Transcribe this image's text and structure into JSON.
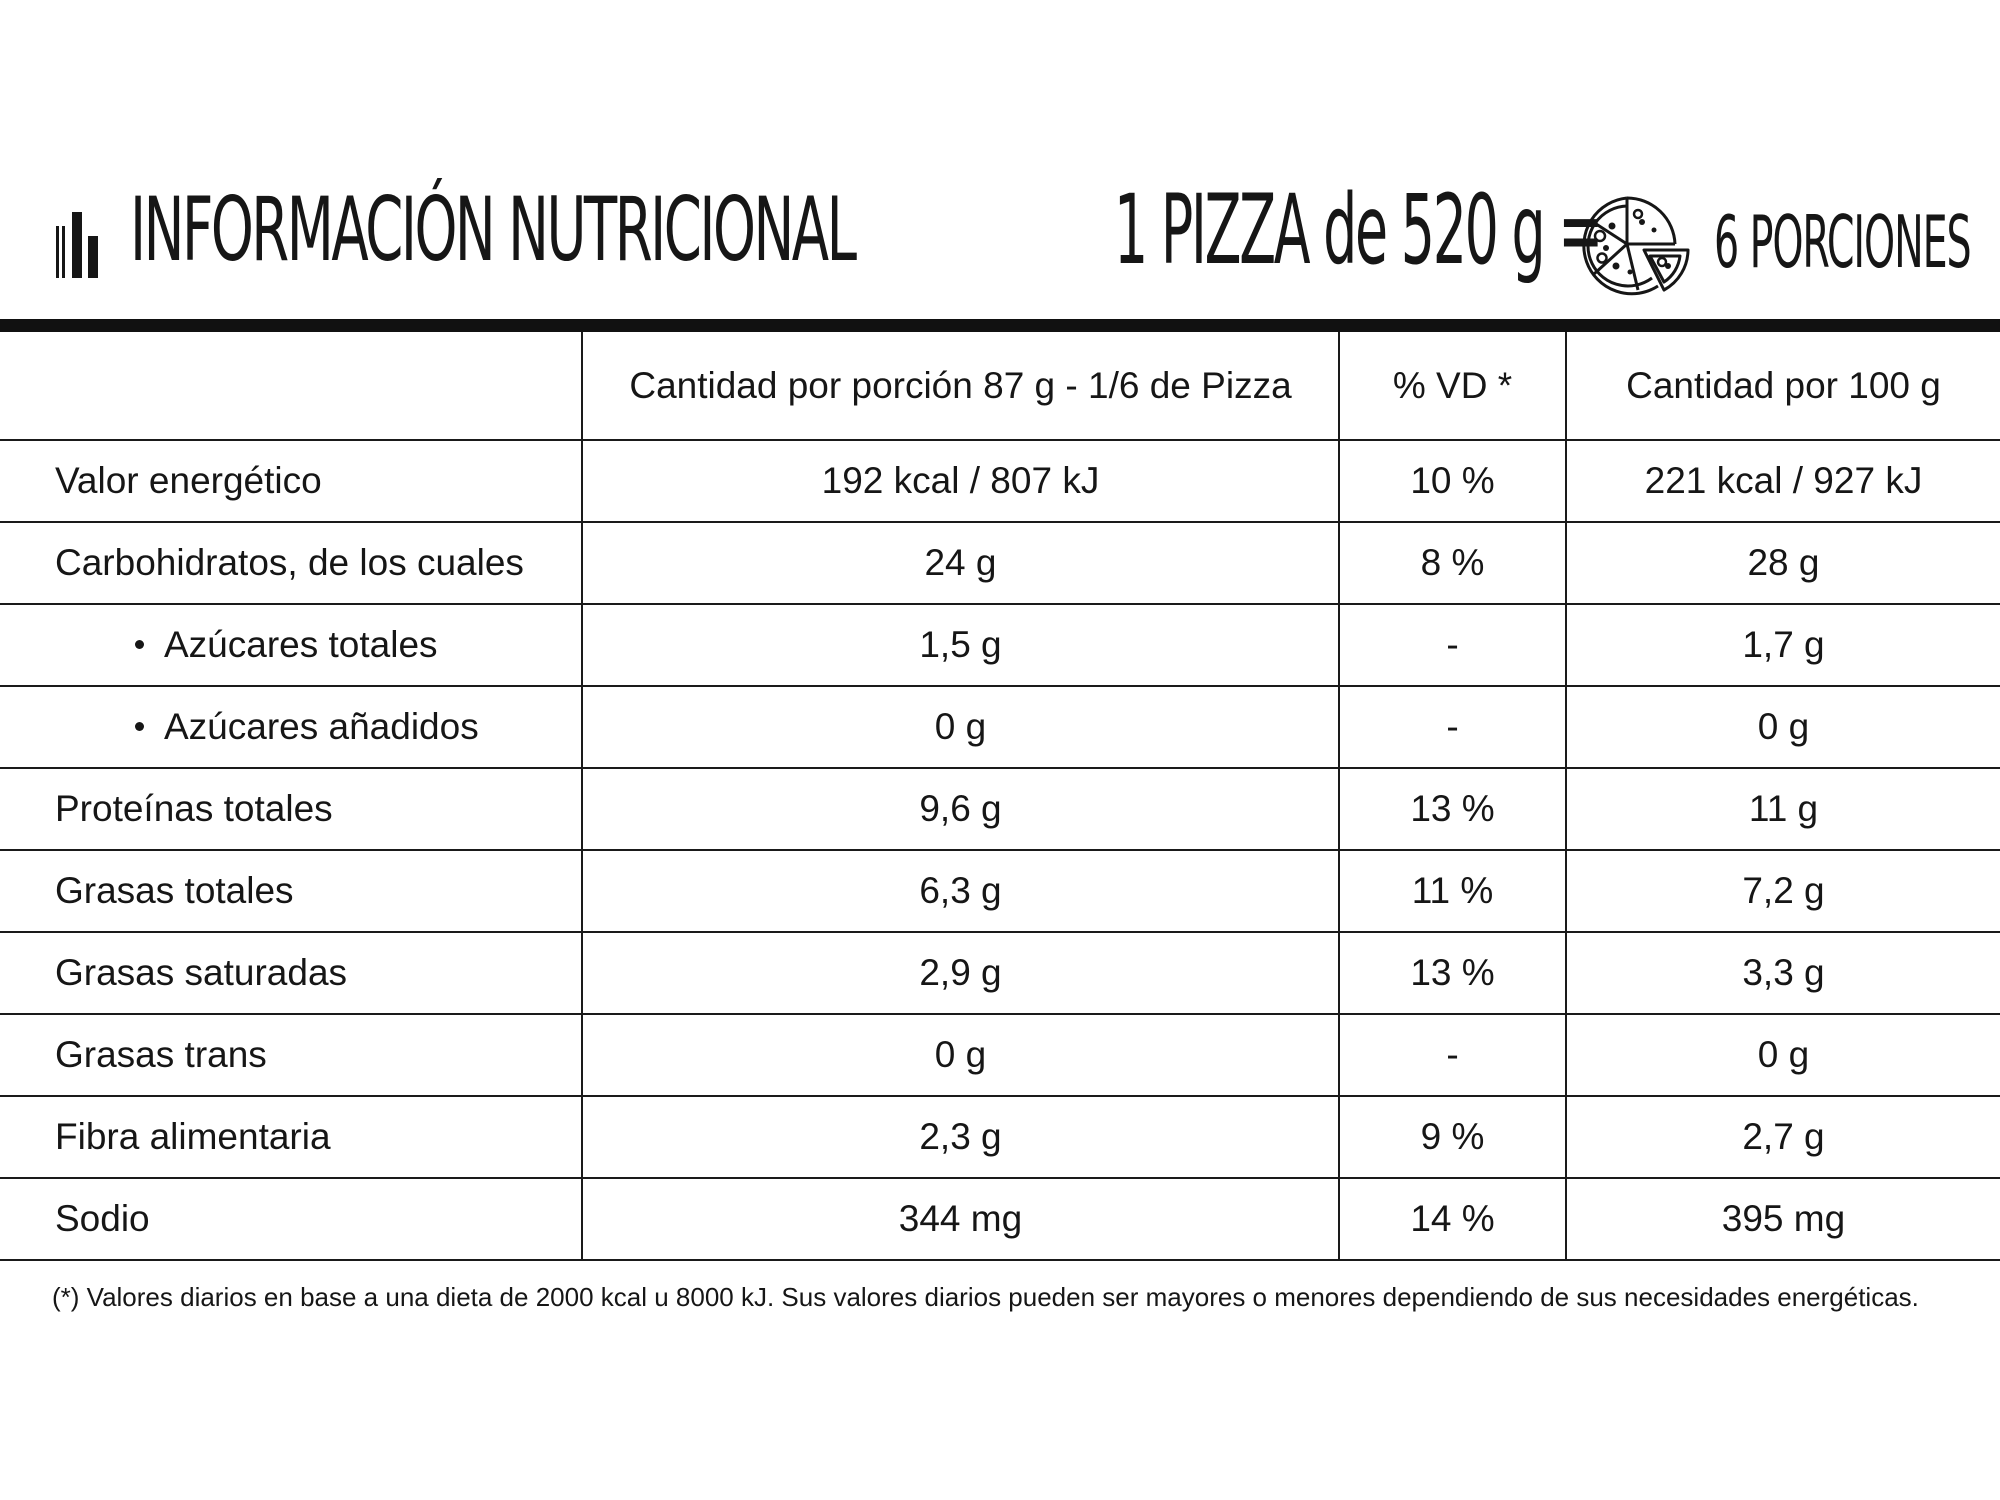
{
  "header": {
    "title": "INFORMACIÓN NUTRICIONAL",
    "serving": "1 PIZZA de 520 g =",
    "portions": "6 PORCIONES",
    "icons": [
      "bar-chart-icon",
      "pizza-icon"
    ]
  },
  "table": {
    "headers": [
      "",
      "Cantidad por porción 87 g - 1/6 de Pizza",
      "% VD *",
      "Cantidad por 100 g"
    ],
    "rows": [
      {
        "nutrient": "Valor energético",
        "per_portion": "192 kcal / 807 kJ",
        "dv": "10 %",
        "per_100g": "221 kcal / 927 kJ"
      },
      {
        "nutrient": "Carbohidratos, de los cuales",
        "per_portion": "24 g",
        "dv": "8 %",
        "per_100g": "28 g"
      },
      {
        "nutrient": "Azúcares totales",
        "per_portion": "1,5 g",
        "dv": "-",
        "per_100g": "1,7 g"
      },
      {
        "nutrient": "Azúcares añadidos",
        "per_portion": "0 g",
        "dv": "-",
        "per_100g": "0 g"
      },
      {
        "nutrient": "Proteínas totales",
        "per_portion": "9,6 g",
        "dv": "13 %",
        "per_100g": "11 g"
      },
      {
        "nutrient": "Grasas totales",
        "per_portion": "6,3 g",
        "dv": "11 %",
        "per_100g": "7,2 g"
      },
      {
        "nutrient": "Grasas saturadas",
        "per_portion": "2,9 g",
        "dv": "13 %",
        "per_100g": "3,3 g"
      },
      {
        "nutrient": "Grasas trans",
        "per_portion": "0 g",
        "dv": "-",
        "per_100g": "0 g"
      },
      {
        "nutrient": "Fibra alimentaria",
        "per_portion": "2,3 g",
        "dv": "9 %",
        "per_100g": "2,7 g"
      },
      {
        "nutrient": "Sodio",
        "per_portion": "344 mg",
        "dv": "14 %",
        "per_100g": "395 mg"
      }
    ]
  },
  "footnote": "(*) Valores diarios en base a una dieta de 2000 kcal u 8000 kJ. Sus valores diarios pueden ser mayores o menores dependiendo de sus necesidades energéticas."
}
